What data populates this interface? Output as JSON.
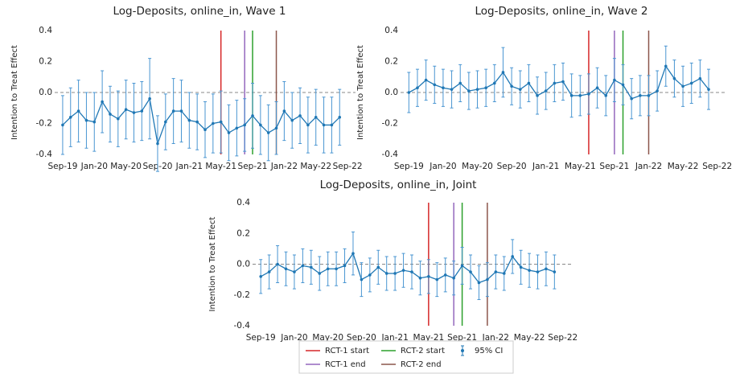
{
  "chart_data": [
    {
      "type": "errorbar",
      "title": "Log-Deposits, online_in, Wave 1",
      "y_label": "Intention to Treat Effect",
      "color": "#1f77b4",
      "x": [
        0,
        1,
        2,
        3,
        4,
        5,
        6,
        7,
        8,
        9,
        10,
        11,
        12,
        13,
        14,
        15,
        16,
        17,
        18,
        19,
        20,
        21,
        22,
        23,
        24,
        25,
        26,
        27,
        28,
        29,
        30,
        31,
        32,
        33,
        34,
        35
      ],
      "values": [
        -0.21,
        -0.16,
        -0.12,
        -0.18,
        -0.19,
        -0.06,
        -0.14,
        -0.17,
        -0.11,
        -0.13,
        -0.12,
        -0.04,
        -0.33,
        -0.19,
        -0.12,
        -0.12,
        -0.18,
        -0.19,
        -0.24,
        -0.2,
        -0.19,
        -0.26,
        -0.23,
        -0.21,
        -0.15,
        -0.21,
        -0.26,
        -0.23,
        -0.12,
        -0.18,
        -0.15,
        -0.21,
        -0.16,
        -0.21,
        -0.21,
        -0.16
      ],
      "errors": [
        0.19,
        0.19,
        0.2,
        0.18,
        0.19,
        0.2,
        0.18,
        0.18,
        0.19,
        0.19,
        0.19,
        0.26,
        0.18,
        0.18,
        0.21,
        0.2,
        0.18,
        0.18,
        0.18,
        0.19,
        0.2,
        0.18,
        0.18,
        0.17,
        0.21,
        0.19,
        0.18,
        0.17,
        0.19,
        0.18,
        0.18,
        0.18,
        0.18,
        0.18,
        0.18,
        0.18
      ],
      "vlines": [
        {
          "x": 20,
          "color": "#d62728"
        },
        {
          "x": 23,
          "color": "#9467bd"
        },
        {
          "x": 24,
          "color": "#2ca02c"
        },
        {
          "x": 27,
          "color": "#8c564b"
        }
      ],
      "hline": 0,
      "xlim": [
        -0.5,
        36.5
      ],
      "ylim": [
        -0.4,
        0.4
      ],
      "xticks": [
        {
          "value": 0,
          "label": "Sep-19"
        },
        {
          "value": 4,
          "label": "Jan-20"
        },
        {
          "value": 8,
          "label": "May-20"
        },
        {
          "value": 12,
          "label": "Sep-20"
        },
        {
          "value": 16,
          "label": "Jan-21"
        },
        {
          "value": 20,
          "label": "May-21"
        },
        {
          "value": 24,
          "label": "Sep-21"
        },
        {
          "value": 28,
          "label": "Jan-22"
        },
        {
          "value": 32,
          "label": "May-22"
        },
        {
          "value": 36,
          "label": "Sep-22"
        }
      ],
      "yticks": [
        -0.4,
        -0.2,
        {
          "value": 0,
          "label": "0.0"
        },
        0.2,
        0.4
      ]
    },
    {
      "type": "errorbar",
      "title": "Log-Deposits, online_in, Wave 2",
      "y_label": "Intention to Treat Effect",
      "color": "#1f77b4",
      "x": [
        0,
        1,
        2,
        3,
        4,
        5,
        6,
        7,
        8,
        9,
        10,
        11,
        12,
        13,
        14,
        15,
        16,
        17,
        18,
        19,
        20,
        21,
        22,
        23,
        24,
        25,
        26,
        27,
        28,
        29,
        30,
        31,
        32,
        33,
        34,
        35
      ],
      "values": [
        0.0,
        0.03,
        0.08,
        0.05,
        0.03,
        0.02,
        0.06,
        0.01,
        0.02,
        0.03,
        0.06,
        0.13,
        0.04,
        0.02,
        0.06,
        -0.02,
        0.01,
        0.06,
        0.07,
        -0.02,
        -0.02,
        -0.01,
        0.03,
        -0.02,
        0.08,
        0.05,
        -0.04,
        -0.02,
        -0.02,
        0.01,
        0.17,
        0.09,
        0.04,
        0.06,
        0.09,
        0.02
      ],
      "errors": [
        0.13,
        0.12,
        0.13,
        0.12,
        0.12,
        0.12,
        0.12,
        0.12,
        0.12,
        0.12,
        0.12,
        0.16,
        0.12,
        0.12,
        0.12,
        0.12,
        0.12,
        0.12,
        0.12,
        0.14,
        0.13,
        0.13,
        0.13,
        0.13,
        0.14,
        0.13,
        0.13,
        0.13,
        0.13,
        0.13,
        0.13,
        0.12,
        0.13,
        0.13,
        0.12,
        0.13
      ],
      "vlines": [
        {
          "x": 21,
          "color": "#d62728"
        },
        {
          "x": 24,
          "color": "#9467bd"
        },
        {
          "x": 25,
          "color": "#2ca02c"
        },
        {
          "x": 28,
          "color": "#8c564b"
        }
      ],
      "hline": 0,
      "xlim": [
        -0.5,
        36.5
      ],
      "ylim": [
        -0.4,
        0.4
      ],
      "xticks": [
        {
          "value": 0,
          "label": "Sep-19"
        },
        {
          "value": 4,
          "label": "Jan-20"
        },
        {
          "value": 8,
          "label": "May-20"
        },
        {
          "value": 12,
          "label": "Sep-20"
        },
        {
          "value": 16,
          "label": "Jan-21"
        },
        {
          "value": 20,
          "label": "May-21"
        },
        {
          "value": 24,
          "label": "Sep-21"
        },
        {
          "value": 28,
          "label": "Jan-22"
        },
        {
          "value": 32,
          "label": "May-22"
        },
        {
          "value": 36,
          "label": "Sep-22"
        }
      ],
      "yticks": [
        -0.4,
        -0.2,
        {
          "value": 0,
          "label": "0.0"
        },
        0.2,
        0.4
      ]
    },
    {
      "type": "errorbar",
      "title": "Log-Deposits, online_in, Joint",
      "y_label": "Intention to Treat Effect",
      "color": "#1f77b4",
      "x": [
        0,
        1,
        2,
        3,
        4,
        5,
        6,
        7,
        8,
        9,
        10,
        11,
        12,
        13,
        14,
        15,
        16,
        17,
        18,
        19,
        20,
        21,
        22,
        23,
        24,
        25,
        26,
        27,
        28,
        29,
        30,
        31,
        32,
        33,
        34,
        35
      ],
      "values": [
        -0.08,
        -0.05,
        0.0,
        -0.03,
        -0.05,
        -0.01,
        -0.02,
        -0.06,
        -0.03,
        -0.03,
        -0.01,
        0.07,
        -0.1,
        -0.07,
        -0.02,
        -0.06,
        -0.06,
        -0.04,
        -0.05,
        -0.09,
        -0.08,
        -0.1,
        -0.07,
        -0.09,
        -0.01,
        -0.05,
        -0.12,
        -0.1,
        -0.05,
        -0.06,
        0.05,
        -0.02,
        -0.04,
        -0.05,
        -0.03,
        -0.05
      ],
      "errors": [
        0.11,
        0.11,
        0.12,
        0.11,
        0.11,
        0.11,
        0.11,
        0.11,
        0.11,
        0.11,
        0.11,
        0.14,
        0.11,
        0.11,
        0.11,
        0.11,
        0.11,
        0.11,
        0.11,
        0.11,
        0.11,
        0.11,
        0.11,
        0.11,
        0.12,
        0.11,
        0.11,
        0.11,
        0.11,
        0.11,
        0.11,
        0.11,
        0.11,
        0.11,
        0.11,
        0.11
      ],
      "vlines": [
        {
          "x": 20,
          "color": "#d62728"
        },
        {
          "x": 23,
          "color": "#9467bd"
        },
        {
          "x": 24,
          "color": "#2ca02c"
        },
        {
          "x": 27,
          "color": "#8c564b"
        }
      ],
      "hline": 0,
      "xlim": [
        -0.5,
        36.5
      ],
      "ylim": [
        -0.4,
        0.4
      ],
      "xticks": [
        {
          "value": 0,
          "label": "Sep-19"
        },
        {
          "value": 4,
          "label": "Jan-20"
        },
        {
          "value": 8,
          "label": "May-20"
        },
        {
          "value": 12,
          "label": "Sep-20"
        },
        {
          "value": 16,
          "label": "Jan-21"
        },
        {
          "value": 20,
          "label": "May-21"
        },
        {
          "value": 24,
          "label": "Sep-21"
        },
        {
          "value": 28,
          "label": "Jan-22"
        },
        {
          "value": 32,
          "label": "May-22"
        },
        {
          "value": 36,
          "label": "Sep-22"
        }
      ],
      "yticks": [
        -0.4,
        -0.2,
        {
          "value": 0,
          "label": "0.0"
        },
        0.2,
        0.4
      ]
    }
  ],
  "legend": {
    "entries": [
      {
        "label": "RCT-1 start",
        "color": "#d62728",
        "kind": "line"
      },
      {
        "label": "RCT-1 end",
        "color": "#9467bd",
        "kind": "line"
      },
      {
        "label": "RCT-2 start",
        "color": "#2ca02c",
        "kind": "line"
      },
      {
        "label": "RCT-2 end",
        "color": "#8c564b",
        "kind": "line"
      },
      {
        "label": "95% CI",
        "color": "#1f77b4",
        "kind": "errorbar"
      }
    ]
  }
}
